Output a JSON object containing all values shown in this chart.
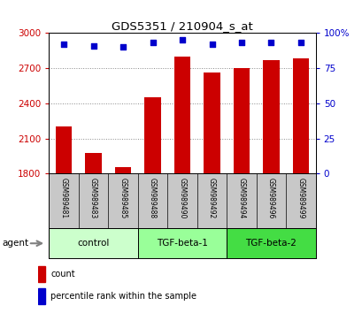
{
  "title": "GDS5351 / 210904_s_at",
  "samples": [
    "GSM989481",
    "GSM989483",
    "GSM989485",
    "GSM989488",
    "GSM989490",
    "GSM989492",
    "GSM989494",
    "GSM989496",
    "GSM989499"
  ],
  "counts": [
    2200,
    1975,
    1855,
    2450,
    2800,
    2660,
    2700,
    2770,
    2780
  ],
  "percentile_ranks": [
    92,
    91,
    90,
    93,
    95,
    92,
    93,
    93,
    93
  ],
  "ylim_left": [
    1800,
    3000
  ],
  "ylim_right": [
    0,
    100
  ],
  "yticks_left": [
    1800,
    2100,
    2400,
    2700,
    3000
  ],
  "yticks_right": [
    0,
    25,
    50,
    75,
    100
  ],
  "left_tick_color": "#cc0000",
  "right_tick_color": "#0000cc",
  "bar_color": "#cc0000",
  "dot_color": "#0000cc",
  "groups": [
    {
      "label": "control",
      "start": 0,
      "end": 3,
      "color": "#ccffcc"
    },
    {
      "label": "TGF-beta-1",
      "start": 3,
      "end": 6,
      "color": "#99ff99"
    },
    {
      "label": "TGF-beta-2",
      "start": 6,
      "end": 9,
      "color": "#44dd44"
    }
  ],
  "grid_linestyle": "dotted",
  "grid_color": "#888888",
  "tick_area_color": "#c8c8c8",
  "agent_label": "agent",
  "legend_count_label": "count",
  "legend_pct_label": "percentile rank within the sample",
  "bar_width": 0.55
}
